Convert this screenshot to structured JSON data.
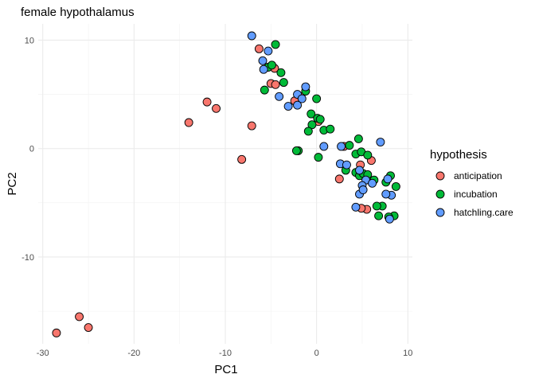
{
  "chart_data": {
    "type": "scatter",
    "title": "female hypothalamus",
    "xlabel": "PC1",
    "ylabel": "PC2",
    "xlim": [
      -30.5,
      10.5
    ],
    "ylim": [
      -18,
      11.5
    ],
    "xticks": [
      -30,
      -20,
      -10,
      0,
      10
    ],
    "yticks": [
      -10,
      0,
      10
    ],
    "grid": true,
    "legend_position": "right",
    "legend_title": "hypothesis",
    "series": [
      {
        "name": "anticipation",
        "color": "#F8766D",
        "points": [
          [
            -28.5,
            -17.0
          ],
          [
            -26.0,
            -15.5
          ],
          [
            -25.0,
            -16.5
          ],
          [
            -14.0,
            2.4
          ],
          [
            -12.0,
            4.3
          ],
          [
            -11.0,
            3.7
          ],
          [
            -8.2,
            -1.0
          ],
          [
            -7.1,
            2.1
          ],
          [
            -6.3,
            9.2
          ],
          [
            -5.0,
            6.0
          ],
          [
            -4.5,
            5.9
          ],
          [
            -4.6,
            7.4
          ],
          [
            -1.7,
            4.8
          ],
          [
            -2.4,
            4.4
          ],
          [
            0.2,
            2.5
          ],
          [
            2.5,
            -2.8
          ],
          [
            3.0,
            0.2
          ],
          [
            6.0,
            -1.1
          ],
          [
            5.5,
            -5.6
          ],
          [
            4.8,
            -1.5
          ],
          [
            4.9,
            -5.5
          ]
        ]
      },
      {
        "name": "incubation",
        "color": "#00BA38",
        "points": [
          [
            -4.5,
            9.6
          ],
          [
            -5.3,
            7.5
          ],
          [
            -4.9,
            7.7
          ],
          [
            -3.9,
            7.0
          ],
          [
            -3.6,
            6.1
          ],
          [
            -5.7,
            5.4
          ],
          [
            -1.2,
            5.3
          ],
          [
            0.0,
            4.6
          ],
          [
            -0.6,
            3.2
          ],
          [
            0.1,
            2.8
          ],
          [
            0.4,
            2.7
          ],
          [
            -0.5,
            2.2
          ],
          [
            -0.9,
            1.6
          ],
          [
            0.8,
            1.7
          ],
          [
            1.5,
            1.8
          ],
          [
            -2.0,
            -0.2
          ],
          [
            -2.2,
            -0.2
          ],
          [
            0.2,
            -0.8
          ],
          [
            3.6,
            0.3
          ],
          [
            4.3,
            -0.5
          ],
          [
            4.6,
            0.9
          ],
          [
            4.9,
            -0.3
          ],
          [
            5.6,
            -0.6
          ],
          [
            4.3,
            -2.2
          ],
          [
            3.2,
            -2.0
          ],
          [
            4.7,
            -2.5
          ],
          [
            5.1,
            -2.3
          ],
          [
            5.6,
            -2.4
          ],
          [
            6.3,
            -2.9
          ],
          [
            7.6,
            -3.1
          ],
          [
            8.1,
            -2.5
          ],
          [
            8.7,
            -3.5
          ],
          [
            8.5,
            -6.2
          ],
          [
            7.9,
            -6.3
          ],
          [
            7.2,
            -5.3
          ],
          [
            6.6,
            -5.3
          ],
          [
            6.8,
            -6.2
          ]
        ]
      },
      {
        "name": "hatchling.care",
        "color": "#619CFF",
        "points": [
          [
            -7.1,
            10.4
          ],
          [
            -5.9,
            8.1
          ],
          [
            -5.8,
            7.3
          ],
          [
            -5.3,
            9.0
          ],
          [
            -1.2,
            5.7
          ],
          [
            -2.1,
            5.0
          ],
          [
            -1.6,
            4.6
          ],
          [
            -2.1,
            4.0
          ],
          [
            -3.1,
            3.9
          ],
          [
            -4.1,
            4.8
          ],
          [
            0.8,
            0.2
          ],
          [
            2.7,
            0.2
          ],
          [
            2.6,
            -1.4
          ],
          [
            3.3,
            -1.5
          ],
          [
            4.7,
            -2.0
          ],
          [
            5.4,
            -2.9
          ],
          [
            5.0,
            -3.4
          ],
          [
            6.1,
            -3.2
          ],
          [
            4.7,
            -4.2
          ],
          [
            5.1,
            -3.8
          ],
          [
            4.3,
            -5.4
          ],
          [
            7.0,
            0.6
          ],
          [
            7.8,
            -2.8
          ],
          [
            8.2,
            -4.3
          ],
          [
            7.6,
            -4.2
          ],
          [
            8.0,
            -6.5
          ]
        ]
      }
    ]
  }
}
